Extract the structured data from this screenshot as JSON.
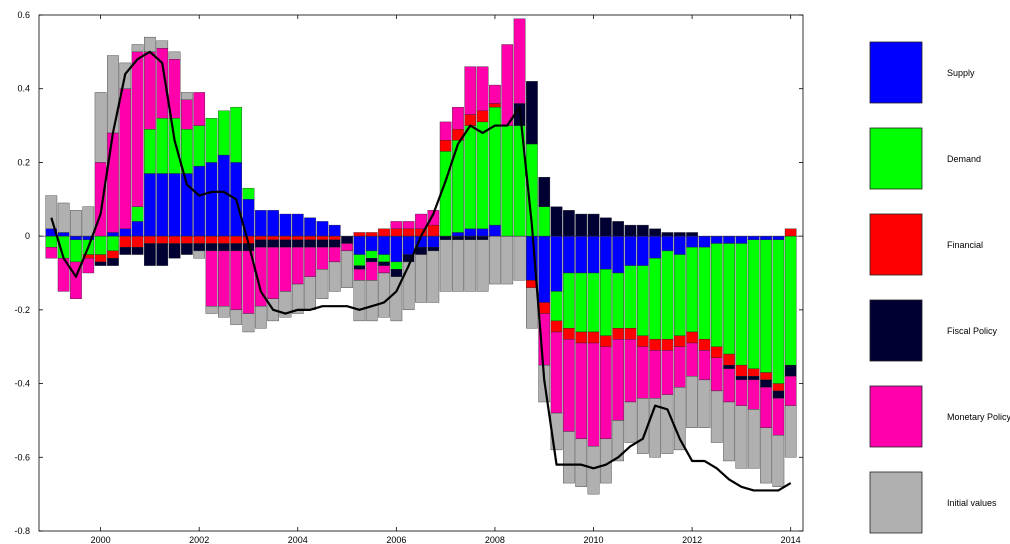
{
  "chart_data": {
    "type": "bar",
    "stacked": true,
    "title": "",
    "xlabel": "",
    "ylabel": "",
    "xlim": [
      1998.75,
      2014.25
    ],
    "ylim": [
      -0.8,
      0.6
    ],
    "x_ticks": [
      2000,
      2002,
      2004,
      2006,
      2008,
      2010,
      2012,
      2014
    ],
    "x_tick_labels": [
      "2000",
      "2002",
      "2004",
      "2006",
      "2008",
      "2010",
      "2012",
      "2014"
    ],
    "y_ticks": [
      -0.8,
      -0.6,
      -0.4,
      -0.2,
      0,
      0.2,
      0.4,
      0.6
    ],
    "y_tick_labels": [
      "-0.8",
      "-0.6",
      "-0.4",
      "-0.2",
      "0",
      "0.2",
      "0.4",
      "0.6"
    ],
    "grid": false,
    "legend_position": "right",
    "x": [
      1999.0,
      1999.25,
      1999.5,
      1999.75,
      2000.0,
      2000.25,
      2000.5,
      2000.75,
      2001.0,
      2001.25,
      2001.5,
      2001.75,
      2002.0,
      2002.25,
      2002.5,
      2002.75,
      2003.0,
      2003.25,
      2003.5,
      2003.75,
      2004.0,
      2004.25,
      2004.5,
      2004.75,
      2005.0,
      2005.25,
      2005.5,
      2005.75,
      2006.0,
      2006.25,
      2006.5,
      2006.75,
      2007.0,
      2007.25,
      2007.5,
      2007.75,
      2008.0,
      2008.25,
      2008.5,
      2008.75,
      2009.0,
      2009.25,
      2009.5,
      2009.75,
      2010.0,
      2010.25,
      2010.5,
      2010.75,
      2011.0,
      2011.25,
      2011.5,
      2011.75,
      2012.0,
      2012.25,
      2012.5,
      2012.75,
      2013.0,
      2013.25,
      2013.5,
      2013.75,
      2014.0
    ],
    "series": [
      {
        "name": "Supply",
        "color": "#0000ff",
        "values": [
          0.02,
          0.01,
          -0.01,
          -0.01,
          0.0,
          0.01,
          0.02,
          0.04,
          0.17,
          0.17,
          0.17,
          0.17,
          0.19,
          0.2,
          0.22,
          0.2,
          0.1,
          0.07,
          0.07,
          0.06,
          0.06,
          0.05,
          0.04,
          0.03,
          0.0,
          -0.05,
          -0.04,
          -0.05,
          -0.07,
          -0.05,
          -0.03,
          -0.03,
          0.0,
          0.01,
          0.02,
          0.02,
          0.03,
          0.0,
          0.0,
          -0.12,
          -0.18,
          -0.15,
          -0.1,
          -0.1,
          -0.1,
          -0.09,
          -0.1,
          -0.08,
          -0.08,
          -0.06,
          -0.04,
          -0.05,
          -0.03,
          -0.03,
          -0.02,
          -0.02,
          -0.02,
          -0.01,
          -0.01,
          -0.01,
          0.0
        ]
      },
      {
        "name": "Demand",
        "color": "#00ff00",
        "values": [
          -0.03,
          -0.06,
          -0.06,
          -0.04,
          -0.05,
          -0.04,
          0.0,
          0.04,
          0.12,
          0.15,
          0.15,
          0.12,
          0.11,
          0.12,
          0.12,
          0.15,
          0.03,
          0.0,
          0.0,
          0.0,
          0.0,
          0.0,
          0.0,
          0.0,
          0.0,
          -0.03,
          -0.02,
          -0.02,
          -0.02,
          0.0,
          0.0,
          0.0,
          0.23,
          0.25,
          0.28,
          0.29,
          0.32,
          0.3,
          0.3,
          0.25,
          0.08,
          -0.08,
          -0.15,
          -0.16,
          -0.16,
          -0.18,
          -0.15,
          -0.17,
          -0.19,
          -0.22,
          -0.24,
          -0.22,
          -0.23,
          -0.25,
          -0.28,
          -0.3,
          -0.33,
          -0.35,
          -0.36,
          -0.39,
          -0.35
        ]
      },
      {
        "name": "Financial",
        "color": "#ff0000",
        "values": [
          0.0,
          0.0,
          0.0,
          -0.01,
          -0.02,
          -0.02,
          -0.03,
          -0.03,
          -0.02,
          -0.02,
          -0.02,
          -0.02,
          -0.02,
          -0.02,
          -0.02,
          -0.02,
          -0.02,
          -0.01,
          -0.01,
          -0.01,
          -0.01,
          -0.01,
          -0.01,
          -0.01,
          0.0,
          0.01,
          0.01,
          0.02,
          0.02,
          0.02,
          0.02,
          0.03,
          0.03,
          0.03,
          0.03,
          0.03,
          0.01,
          0.0,
          0.0,
          -0.02,
          -0.03,
          -0.03,
          -0.03,
          -0.03,
          -0.03,
          -0.03,
          -0.03,
          -0.03,
          -0.03,
          -0.03,
          -0.03,
          -0.03,
          -0.03,
          -0.03,
          -0.03,
          -0.03,
          -0.03,
          -0.02,
          -0.02,
          -0.02,
          0.02
        ]
      },
      {
        "name": "Fiscal Policy",
        "color": "#000033",
        "values": [
          0.0,
          0.0,
          0.0,
          0.0,
          -0.01,
          -0.02,
          -0.02,
          -0.02,
          -0.06,
          -0.06,
          -0.04,
          -0.03,
          -0.02,
          -0.02,
          -0.02,
          -0.02,
          -0.02,
          -0.02,
          -0.02,
          -0.02,
          -0.02,
          -0.02,
          -0.02,
          -0.02,
          -0.02,
          -0.01,
          -0.01,
          -0.01,
          -0.02,
          -0.02,
          -0.02,
          -0.01,
          -0.01,
          -0.01,
          -0.01,
          -0.01,
          0.0,
          0.0,
          0.06,
          0.17,
          0.08,
          0.08,
          0.07,
          0.06,
          0.06,
          0.05,
          0.04,
          0.03,
          0.03,
          0.02,
          0.01,
          0.01,
          0.01,
          0.0,
          0.0,
          -0.01,
          -0.01,
          -0.01,
          -0.02,
          -0.02,
          -0.03
        ]
      },
      {
        "name": "Monetary Policy",
        "color": "#ff00aa",
        "values": [
          -0.03,
          -0.09,
          -0.1,
          -0.04,
          0.2,
          0.27,
          0.38,
          0.42,
          0.21,
          0.19,
          0.16,
          0.08,
          0.09,
          -0.15,
          -0.15,
          -0.16,
          -0.17,
          -0.16,
          -0.14,
          -0.12,
          -0.1,
          -0.08,
          -0.06,
          -0.04,
          -0.02,
          -0.03,
          -0.05,
          -0.02,
          0.02,
          0.02,
          0.04,
          0.04,
          0.05,
          0.06,
          0.13,
          0.12,
          0.05,
          0.22,
          0.23,
          0.0,
          -0.14,
          -0.22,
          -0.25,
          -0.26,
          -0.28,
          -0.25,
          -0.22,
          -0.17,
          -0.14,
          -0.13,
          -0.12,
          -0.11,
          -0.09,
          -0.08,
          -0.09,
          -0.09,
          -0.07,
          -0.08,
          -0.11,
          -0.1,
          -0.08
        ]
      },
      {
        "name": "Initial values",
        "color": "#b0b0b0",
        "values": [
          0.09,
          0.08,
          0.07,
          0.08,
          0.19,
          0.21,
          0.07,
          0.02,
          0.04,
          0.02,
          0.02,
          0.02,
          -0.02,
          -0.02,
          -0.03,
          -0.04,
          -0.05,
          -0.06,
          -0.06,
          -0.07,
          -0.08,
          -0.09,
          -0.08,
          -0.08,
          -0.1,
          -0.11,
          -0.11,
          -0.12,
          -0.12,
          -0.13,
          -0.13,
          -0.14,
          -0.14,
          -0.14,
          -0.14,
          -0.14,
          -0.13,
          -0.13,
          -0.12,
          -0.11,
          -0.1,
          -0.1,
          -0.14,
          -0.13,
          -0.13,
          -0.12,
          -0.11,
          -0.11,
          -0.15,
          -0.16,
          -0.16,
          -0.17,
          -0.14,
          -0.13,
          -0.14,
          -0.16,
          -0.17,
          -0.16,
          -0.15,
          -0.14,
          -0.14
        ]
      }
    ],
    "line": {
      "name": "",
      "color": "#000000",
      "values": [
        0.05,
        -0.06,
        -0.11,
        -0.03,
        0.06,
        0.28,
        0.44,
        0.48,
        0.5,
        0.47,
        0.26,
        0.14,
        0.11,
        0.12,
        0.12,
        0.1,
        -0.02,
        -0.15,
        -0.2,
        -0.21,
        -0.2,
        -0.2,
        -0.19,
        -0.19,
        -0.19,
        -0.2,
        -0.19,
        -0.18,
        -0.15,
        -0.08,
        0.0,
        0.06,
        0.15,
        0.25,
        0.3,
        0.28,
        0.3,
        0.3,
        0.35,
        0.03,
        -0.39,
        -0.62,
        -0.62,
        -0.62,
        -0.63,
        -0.62,
        -0.6,
        -0.57,
        -0.55,
        -0.46,
        -0.47,
        -0.55,
        -0.61,
        -0.61,
        -0.63,
        -0.66,
        -0.68,
        -0.69,
        -0.69,
        -0.69,
        -0.67
      ]
    }
  }
}
